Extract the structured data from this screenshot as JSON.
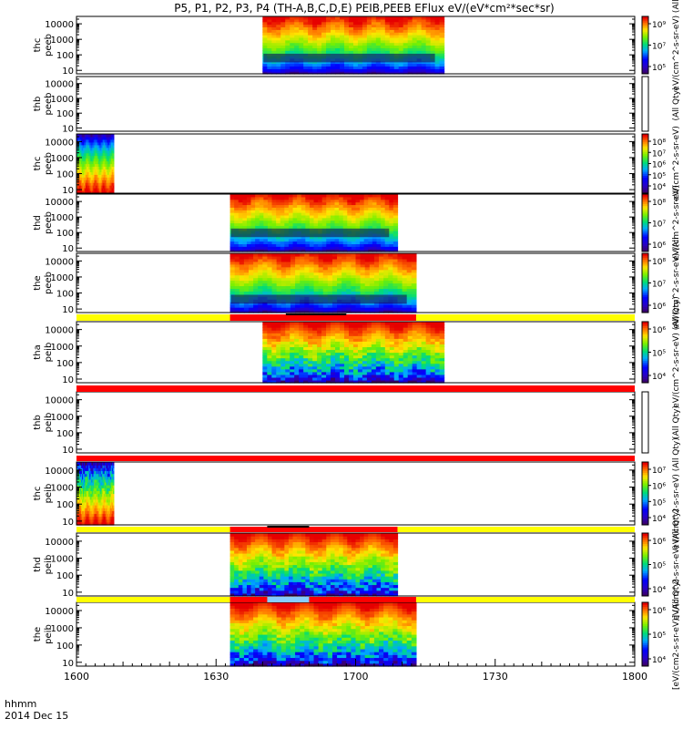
{
  "title": "P5, P1, P2, P3, P4 (TH-A,B,C,D,E) PEIB,PEEB EFlux eV/(eV*cm²*sec*sr)",
  "footer": {
    "time_label": "hhmm",
    "date_label": "2014 Dec 15"
  },
  "colors": {
    "bar_yellow": "#ffff00",
    "bar_red": "#ff0000",
    "bar_black": "#000000",
    "bar_cyan": "#88ccff"
  },
  "chart_data": {
    "type": "heatmap",
    "x_tick_labels": [
      "1600",
      "1630",
      "1700",
      "1730",
      "1800"
    ],
    "x_ticks_minutes": [
      0,
      30,
      60,
      90,
      120
    ],
    "xlim_minutes": [
      0,
      120
    ],
    "y_scale": "log",
    "y_tick_labels": [
      "10",
      "100",
      "1000",
      "10000"
    ],
    "ylim": [
      6,
      30000
    ],
    "colormap": "rainbow",
    "panels": [
      {
        "label1": "thc",
        "label2": "peeb",
        "on": [
          40,
          79
        ],
        "low": 3.2,
        "high": 9.0,
        "cbar_ticks": [
          "10⁵",
          "10⁷",
          "10⁹"
        ],
        "cbar_label": "eV/(cm^2-s-sr-eV) (All",
        "mark": {
          "bottom": 0.2,
          "top": 0.35
        }
      },
      {
        "label1": "thb",
        "label2": "peeb",
        "on": null,
        "cbar_ticks": [],
        "cbar_label": "(All Qty)"
      },
      {
        "label1": "thc",
        "label2": "peeb",
        "on": [
          0,
          8
        ],
        "low": 3.0,
        "high": 5.5,
        "inverted": true,
        "cbar_ticks": [
          "10⁴",
          "10⁵",
          "10⁶",
          "10⁷",
          "10⁸"
        ],
        "cbar_label": "eV/(cm^2-s-sr-eV)"
      },
      {
        "label1": "thd",
        "label2": "peeb",
        "on": [
          33,
          69
        ],
        "low": 3.5,
        "high": 8.8,
        "cbar_ticks": [
          "10⁶",
          "10⁷",
          "10⁸"
        ],
        "cbar_label": "eV/(cm^2-s-sr-eV)",
        "mark": {
          "bottom": 0.25,
          "top": 0.4
        }
      },
      {
        "label1": "the",
        "label2": "peeb",
        "on": [
          33,
          73
        ],
        "low": 3.5,
        "high": 9.0,
        "cbar_ticks": [
          "10⁶",
          "10⁷",
          "10⁸"
        ],
        "cbar_label": "eV/(cm^2-s-sr-eV) (All",
        "mark": {
          "bottom": 0.15,
          "top": 0.3
        }
      },
      {
        "label1": "tha",
        "label2": "peib",
        "on": [
          40,
          79
        ],
        "low": 2.5,
        "high": 7.5,
        "noisy": true,
        "cbar_ticks": [
          "10⁴",
          "10⁵",
          "10⁶"
        ],
        "cbar_label": "eV/(cm^2-s-sr-eV) (All Qty)"
      },
      {
        "label1": "thb",
        "label2": "peib",
        "on": null,
        "cbar_ticks": [],
        "cbar_label": "(All Qty)"
      },
      {
        "label1": "thc",
        "label2": "peib",
        "on": [
          0,
          8
        ],
        "low": 2.5,
        "high": 7.0,
        "noisy": true,
        "inverted": true,
        "cbar_ticks": [
          "10⁴",
          "10⁵",
          "10⁶",
          "10⁷"
        ],
        "cbar_label": "eV/(cm^2-s-sr-eV) (All Qty)"
      },
      {
        "label1": "thd",
        "label2": "peib",
        "on": [
          33,
          69
        ],
        "low": 2.5,
        "high": 7.5,
        "noisy": true,
        "cbar_ticks": [
          "10⁴",
          "10⁵",
          "10⁶"
        ],
        "cbar_label": "eV/(cm^2-s-sr-eV) (All Qty)"
      },
      {
        "label1": "the",
        "label2": "peib",
        "on": [
          33,
          73
        ],
        "low": 2.5,
        "high": 7.5,
        "noisy": true,
        "cbar_ticks": [
          "10⁴",
          "10⁵",
          "10⁶"
        ],
        "cbar_label": "[eV/(cm2-s-sr-eV)] (All Qty)"
      }
    ],
    "status_bars": [
      {
        "after_panel": 4,
        "base": "yellow",
        "segments": [
          {
            "from": 33,
            "to": 73,
            "color": "red"
          },
          {
            "from": 45,
            "to": 58,
            "color": "black"
          }
        ]
      },
      {
        "after_panel": 5,
        "base": "red",
        "segments": []
      },
      {
        "after_panel": 6,
        "base": "red",
        "segments": []
      },
      {
        "after_panel": 7,
        "base": "yellow",
        "segments": [
          {
            "from": 33,
            "to": 69,
            "color": "red"
          },
          {
            "from": 41,
            "to": 50,
            "color": "black"
          }
        ]
      },
      {
        "after_panel": 8,
        "base": "yellow",
        "segments": [
          {
            "from": 33,
            "to": 73,
            "color": "red"
          },
          {
            "from": 41,
            "to": 50,
            "color": "cyan"
          }
        ]
      }
    ]
  }
}
